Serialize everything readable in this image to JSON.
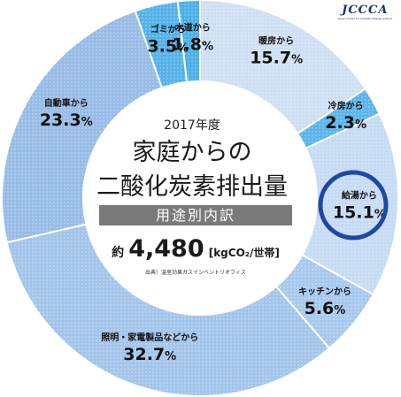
{
  "logo": {
    "text": "JCCCA",
    "subtitle": "Japan Center for Climate Change Actions"
  },
  "center": {
    "year": "2017年度",
    "title_line1": "家庭からの",
    "title_line2": "二酸化炭素排出量",
    "band": "用途別内訳",
    "total_prefix": "約",
    "total_value": "4,480",
    "total_unit": "[kgCO₂/世帯]",
    "source": "出典）温室効果ガスインベントリオフィス"
  },
  "chart_data": {
    "type": "pie",
    "start_angle_deg": 0,
    "direction": "clockwise",
    "highlighted": "給湯から",
    "series": [
      {
        "label": "暖房から",
        "value": 15.7,
        "display": "15.7",
        "color": "#cfdff3"
      },
      {
        "label": "冷房から",
        "value": 2.3,
        "display": "2.3",
        "color": "#5ab5ea"
      },
      {
        "label": "給湯から",
        "value": 15.1,
        "display": "15.1",
        "color": "#c6dbf4"
      },
      {
        "label": "キッチンから",
        "value": 5.6,
        "display": "5.6",
        "color": "#a8c9ee"
      },
      {
        "label": "照明・家電製品などから",
        "value": 32.7,
        "display": "32.7",
        "color": "#a3c5eb"
      },
      {
        "label": "自動車から",
        "value": 23.3,
        "display": "23.3",
        "color": "#98bce6"
      },
      {
        "label": "ゴミから",
        "value": 3.5,
        "display": "3.5",
        "color": "#55b2e8"
      },
      {
        "label": "水道から",
        "value": 1.8,
        "display": "1.8",
        "color": "#4bb0ea"
      }
    ],
    "unit": "%"
  }
}
